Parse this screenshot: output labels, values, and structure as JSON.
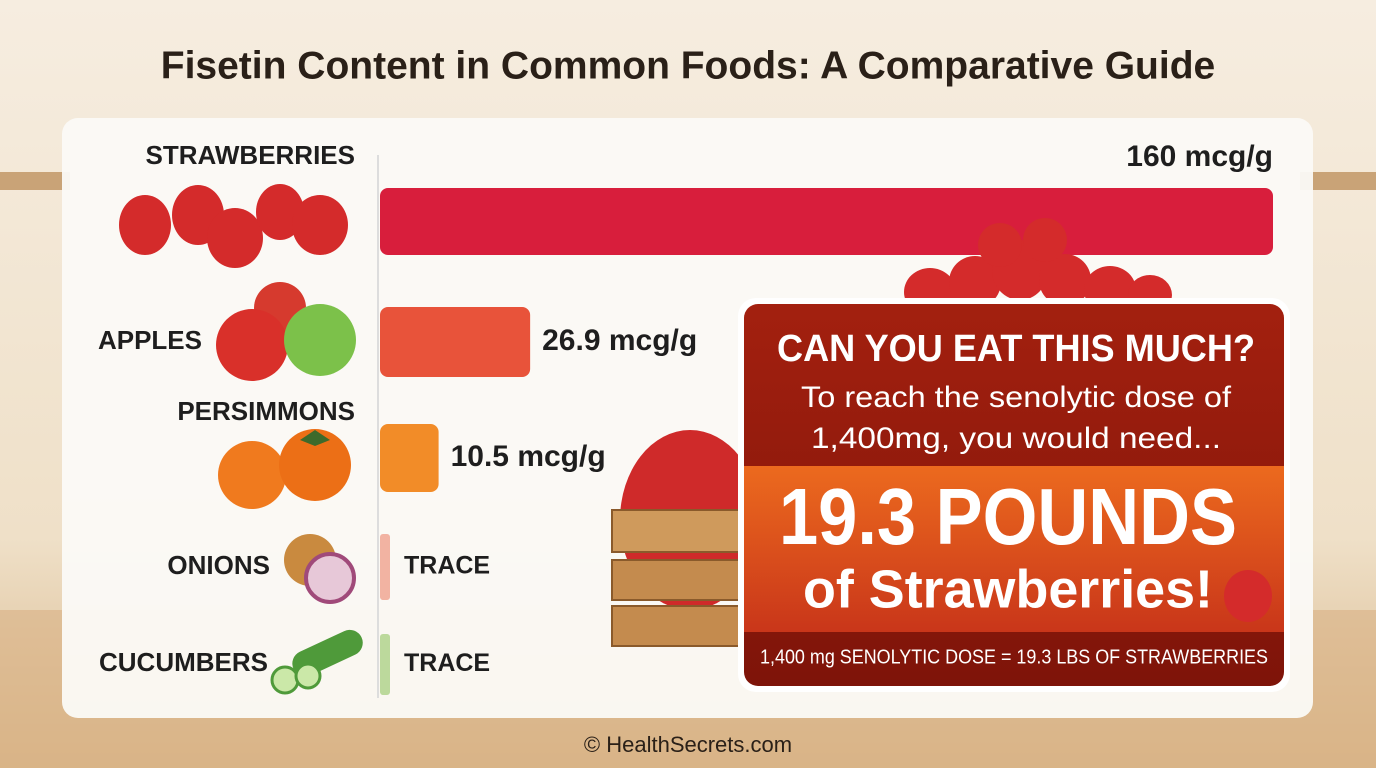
{
  "chart_data": {
    "type": "bar",
    "title": "Fisetin Content in Common Foods: A Comparative Guide",
    "categories": [
      "STRAWBERRIES",
      "APPLES",
      "PERSIMMONS",
      "ONIONS",
      "CUCUMBERS"
    ],
    "values": [
      160,
      26.9,
      10.5,
      null,
      null
    ],
    "value_labels": [
      "160 mcg/g",
      "26.9 mcg/g",
      "10.5 mcg/g",
      "TRACE",
      "TRACE"
    ],
    "colors": [
      "#d81e3c",
      "#e8533a",
      "#f28c28",
      "#f2b3a2",
      "#bcd99c"
    ],
    "xlim": [
      0,
      160
    ],
    "callout": {
      "heading": "CAN YOU EAT THIS MUCH?",
      "line1": "To reach the senolytic dose of",
      "line2": "1,400mg, you would need...",
      "big": "19.3 POUNDS",
      "sub": "of Strawberries!",
      "footer": "1,400 mg SENOLYTIC DOSE = 19.3 LBS OF STRAWBERRIES"
    },
    "credit": "© HealthSecrets.com"
  }
}
